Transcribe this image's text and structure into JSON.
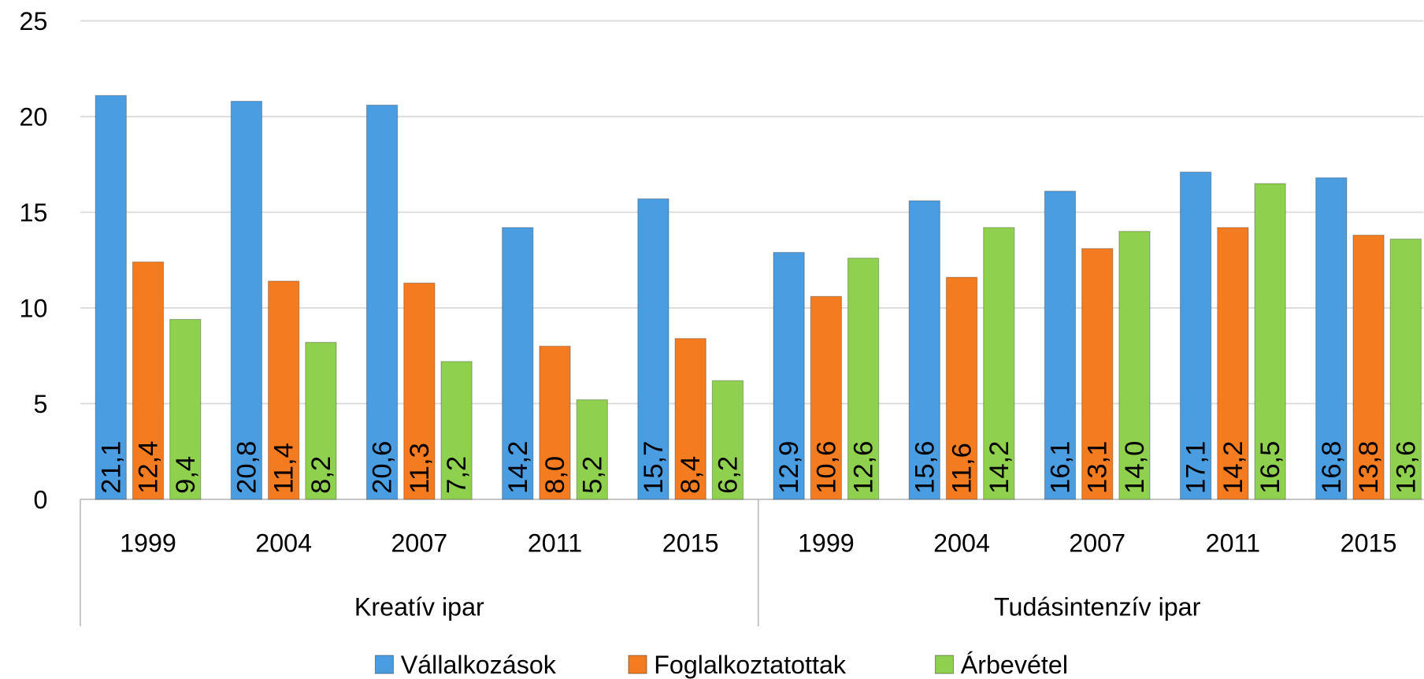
{
  "chart_data": {
    "type": "bar",
    "category_groups": [
      {
        "name": "Kreatív ipar",
        "categories": [
          "1999",
          "2004",
          "2007",
          "2011",
          "2015"
        ]
      },
      {
        "name": "Tudásintenzív ipar",
        "categories": [
          "1999",
          "2004",
          "2007",
          "2011",
          "2015"
        ]
      }
    ],
    "series": [
      {
        "name": "Vállalkozások",
        "color": "#4a9de0",
        "values": [
          21.1,
          20.8,
          20.6,
          14.2,
          15.7,
          12.9,
          15.6,
          16.1,
          17.1,
          16.8
        ],
        "value_labels": [
          "21,1",
          "20,8",
          "20,6",
          "14,2",
          "15,7",
          "12,9",
          "15,6",
          "16,1",
          "17,1",
          "16,8"
        ]
      },
      {
        "name": "Foglalkoztatottak",
        "color": "#f47c20",
        "values": [
          12.4,
          11.4,
          11.3,
          8.0,
          8.4,
          10.6,
          11.6,
          13.1,
          14.2,
          13.8
        ],
        "value_labels": [
          "12,4",
          "11,4",
          "11,3",
          "8,0",
          "8,4",
          "10,6",
          "11,6",
          "13,1",
          "14,2",
          "13,8"
        ]
      },
      {
        "name": "Árbevétel",
        "color": "#8fd14f",
        "values": [
          9.4,
          8.2,
          7.2,
          5.2,
          6.2,
          12.6,
          14.2,
          14.0,
          16.5,
          13.6
        ],
        "value_labels": [
          "9,4",
          "8,2",
          "7,2",
          "5,2",
          "6,2",
          "12,6",
          "14,2",
          "14,0",
          "16,5",
          "13,6"
        ]
      }
    ],
    "ylim": [
      0,
      25
    ],
    "yticks": [
      0,
      5,
      10,
      15,
      20,
      25
    ],
    "grid": true,
    "legend": "bottom"
  }
}
